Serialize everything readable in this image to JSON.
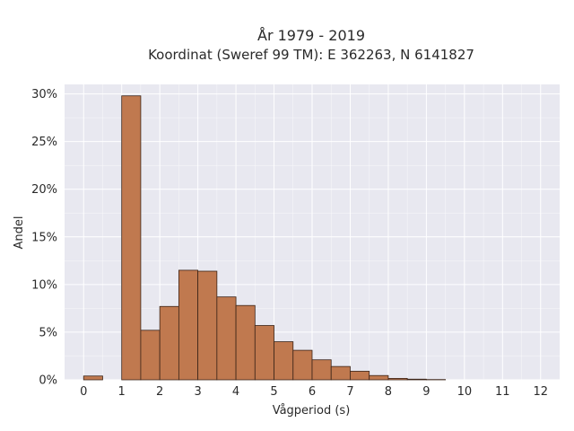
{
  "chart_data": {
    "type": "bar",
    "title": "År 1979 - 2019",
    "subtitle": "Koordinat (Sweref 99 TM): E 362263, N 6141827",
    "xlabel": "Vågperiod (s)",
    "ylabel": "Andel",
    "bin_width": 0.5,
    "bins": [
      {
        "start": 0.0,
        "value": 0.4
      },
      {
        "start": 1.0,
        "value": 29.8
      },
      {
        "start": 1.5,
        "value": 5.2
      },
      {
        "start": 2.0,
        "value": 7.7
      },
      {
        "start": 2.5,
        "value": 11.5
      },
      {
        "start": 3.0,
        "value": 11.4
      },
      {
        "start": 3.5,
        "value": 8.7
      },
      {
        "start": 4.0,
        "value": 7.8
      },
      {
        "start": 4.5,
        "value": 5.7
      },
      {
        "start": 5.0,
        "value": 4.0
      },
      {
        "start": 5.5,
        "value": 3.1
      },
      {
        "start": 6.0,
        "value": 2.1
      },
      {
        "start": 6.5,
        "value": 1.4
      },
      {
        "start": 7.0,
        "value": 0.9
      },
      {
        "start": 7.5,
        "value": 0.45
      },
      {
        "start": 8.0,
        "value": 0.15
      },
      {
        "start": 8.5,
        "value": 0.07
      },
      {
        "start": 9.0,
        "value": 0.03
      }
    ],
    "xlim": [
      -0.5,
      12.5
    ],
    "ylim": [
      0,
      31
    ],
    "x_ticks": [
      0,
      1,
      2,
      3,
      4,
      5,
      6,
      7,
      8,
      9,
      10,
      11,
      12
    ],
    "x_tick_labels": [
      "0",
      "1",
      "2",
      "3",
      "4",
      "5",
      "6",
      "7",
      "8",
      "9",
      "10",
      "11",
      "12"
    ],
    "y_ticks": [
      0,
      5,
      10,
      15,
      20,
      25,
      30
    ],
    "y_tick_labels": [
      "0%",
      "5%",
      "10%",
      "15%",
      "20%",
      "25%",
      "30%"
    ],
    "grid": true,
    "colors": {
      "bar_fill": "#c0794f",
      "bar_stroke": "#3b2418",
      "plot_background": "#e8e8f0",
      "grid": "#ffffff"
    }
  }
}
